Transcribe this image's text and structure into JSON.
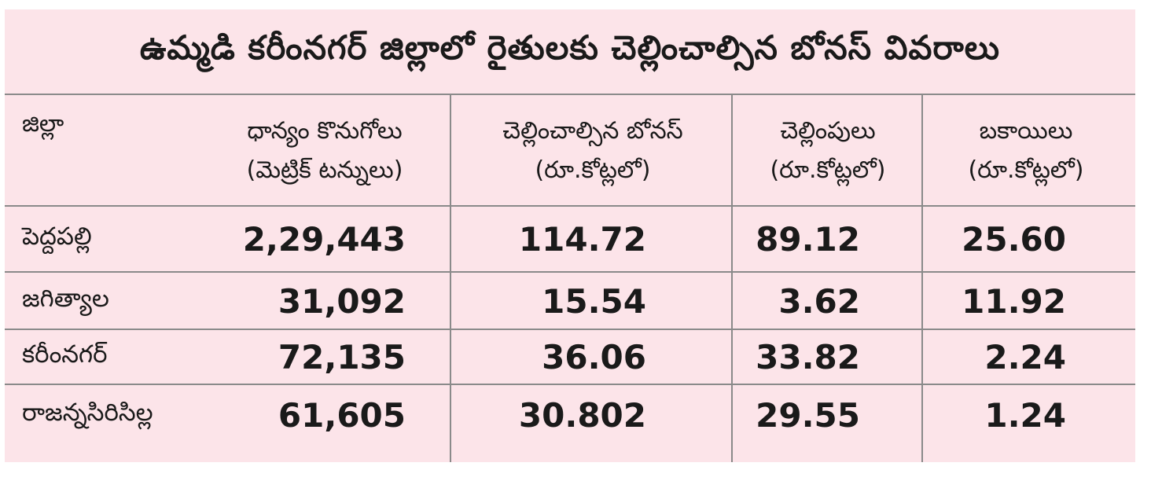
{
  "title": "ఉమ్మడి కరీంనగర్ జిల్లాలో రైతులకు చెల్లించాల్సిన బోనస్ వివరాలు",
  "headers": {
    "district": "జిల్లా",
    "procurement": "ధాన్యం కొనుగోలు",
    "procurement_unit": "(మెట్రిక్ టన్నులు)",
    "bonus_payable": "చెల్లించాల్సిన బోనస్",
    "bonus_payable_unit": "(రూ.కోట్లలో)",
    "payments": "చెల్లింపులు",
    "payments_unit": "(రూ.కోట్లలో)",
    "dues": "బకాయిలు",
    "dues_unit": "(రూ.కోట్లలో)"
  },
  "rows": [
    {
      "district": "పెద్దపల్లి",
      "procurement": "2,29,443",
      "bonus": "114.72",
      "paid": "89.12",
      "dues": "25.60"
    },
    {
      "district": "జగిత్యాల",
      "procurement": "31,092",
      "bonus": "15.54",
      "paid": "3.62",
      "dues": "11.92"
    },
    {
      "district": "కరీంనగర్",
      "procurement": "72,135",
      "bonus": "36.06",
      "paid": "33.82",
      "dues": "2.24"
    },
    {
      "district": "రాజన్నసిరిసిల్ల",
      "procurement": "61,605",
      "bonus": "30.802",
      "paid": "29.55",
      "dues": "1.24"
    }
  ]
}
